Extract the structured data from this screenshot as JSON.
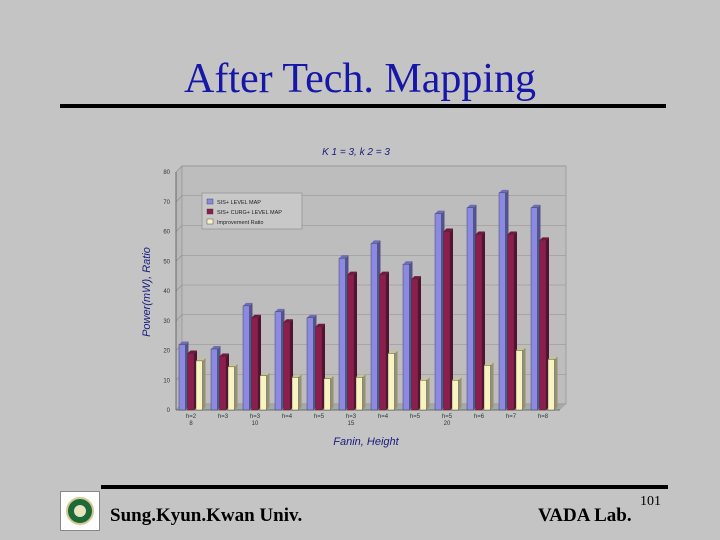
{
  "slide": {
    "title": "After Tech. Mapping",
    "footer_left": "Sung.Kyun.Kwan Univ.",
    "footer_right": "VADA Lab.",
    "page_number": "101"
  },
  "chart_data": {
    "type": "bar",
    "title": "K 1 = 3, k 2 = 3",
    "xlabel": "Fanin, Height",
    "ylabel": "Power(mW), Ratio",
    "ylim": [
      0,
      80
    ],
    "yticks": [
      0,
      10,
      20,
      30,
      40,
      50,
      60,
      70,
      80
    ],
    "grid": true,
    "legend_position": "top-left",
    "categories": [
      {
        "line1": "h=2",
        "line2": "8"
      },
      {
        "line1": "h=3",
        "line2": ""
      },
      {
        "line1": "h=3",
        "line2": "10"
      },
      {
        "line1": "h=4",
        "line2": ""
      },
      {
        "line1": "h=5",
        "line2": ""
      },
      {
        "line1": "h=3",
        "line2": "15"
      },
      {
        "line1": "h=4",
        "line2": ""
      },
      {
        "line1": "h=5",
        "line2": ""
      },
      {
        "line1": "h=5",
        "line2": "20"
      },
      {
        "line1": "h=6",
        "line2": ""
      },
      {
        "line1": "h=7",
        "line2": ""
      },
      {
        "line1": "h=8",
        "line2": ""
      }
    ],
    "series": [
      {
        "name": "SIS+ LEVEL MAP",
        "color": "#8a8ae6",
        "values": [
          22,
          20.5,
          35,
          33,
          31,
          51,
          56,
          49,
          66,
          68,
          73,
          68
        ]
      },
      {
        "name": "SIS+ CURG+ LEVEL MAP",
        "color": "#8c1e4e",
        "values": [
          19,
          18,
          31,
          29.5,
          28,
          45.5,
          45.5,
          44,
          60,
          59,
          59,
          57
        ]
      },
      {
        "name": "Improvement Ratio",
        "color": "#f8f4c0",
        "values": [
          16.5,
          14.5,
          11.5,
          11,
          10.5,
          11,
          19,
          10,
          10,
          15,
          20,
          17
        ]
      }
    ]
  }
}
